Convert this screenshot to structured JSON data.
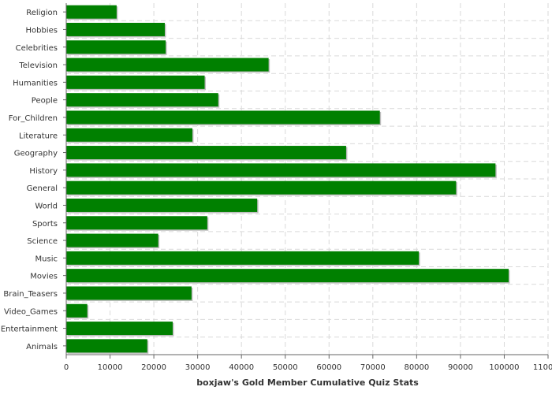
{
  "chart_data": {
    "type": "bar",
    "orientation": "horizontal",
    "title": "",
    "xlabel": "boxjaw's Gold Member Cumulative Quiz Stats",
    "ylabel": "",
    "categories": [
      "Religion",
      "Hobbies",
      "Celebrities",
      "Television",
      "Humanities",
      "People",
      "For_Children",
      "Literature",
      "Geography",
      "History",
      "General",
      "World",
      "Sports",
      "Science",
      "Music",
      "Movies",
      "Brain_Teasers",
      "Video_Games",
      "Entertainment",
      "Animals"
    ],
    "values": [
      11500,
      22500,
      22700,
      46200,
      31600,
      34700,
      71600,
      28800,
      63900,
      98000,
      89000,
      43600,
      32200,
      21000,
      80500,
      101000,
      28600,
      4800,
      24300,
      18500
    ],
    "xlim": [
      0,
      110000
    ],
    "xticks": [
      "0",
      "10000",
      "20000",
      "30000",
      "40000",
      "50000",
      "60000",
      "70000",
      "80000",
      "90000",
      "100000",
      "110000"
    ],
    "grid": true,
    "bar_color": "#008000",
    "bar_shadow_color": "#bdbdbd"
  }
}
